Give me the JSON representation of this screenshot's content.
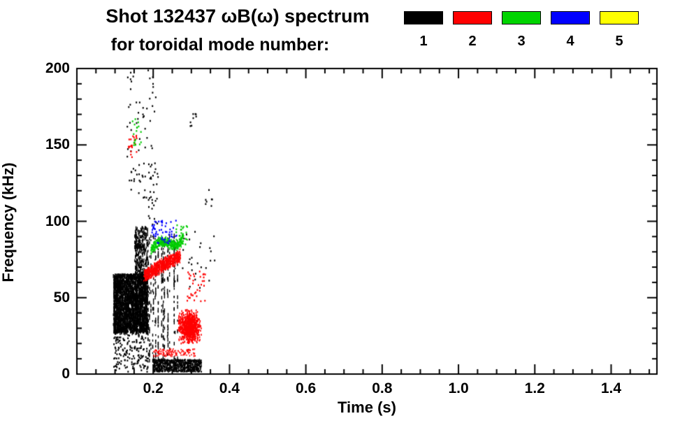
{
  "header": {
    "title": "Shot 132437 ωB(ω) spectrum",
    "subtitle": "for toroidal mode number:"
  },
  "legend": {
    "items": [
      {
        "label": "1",
        "color": "#000000"
      },
      {
        "label": "2",
        "color": "#ff0000"
      },
      {
        "label": "3",
        "color": "#00d400"
      },
      {
        "label": "4",
        "color": "#0000ff"
      },
      {
        "label": "5",
        "color": "#ffff00"
      }
    ]
  },
  "chart_data": {
    "type": "scatter",
    "title": "Shot 132437 ωB(ω) spectrum for toroidal mode number:",
    "xlabel": "Time (s)",
    "ylabel": "Frequency (kHz)",
    "xlim": [
      0.0,
      1.52
    ],
    "ylim": [
      0,
      200
    ],
    "xticks": [
      0.2,
      0.4,
      0.6,
      0.8,
      1.0,
      1.2,
      1.4
    ],
    "xtick_labels": [
      "0.2",
      "0.4",
      "0.6",
      "0.8",
      "1.0",
      "1.2",
      "1.4"
    ],
    "yticks": [
      0,
      50,
      100,
      150,
      200
    ],
    "ytick_labels": [
      "0",
      "50",
      "100",
      "150",
      "200"
    ],
    "x_minor_step": 0.05,
    "y_minor_step": 10,
    "grid": false,
    "legend_position": "top-right",
    "series": [
      {
        "name": "1",
        "color": "#000000",
        "clusters": [
          {
            "shape": "streaks",
            "t": [
              0.095,
              0.185
            ],
            "f": [
              28,
              66
            ],
            "n": 2600
          },
          {
            "shape": "specks",
            "t": [
              0.095,
              0.185
            ],
            "f": [
              2,
              28
            ],
            "n": 160
          },
          {
            "shape": "streaks",
            "t": [
              0.15,
              0.185
            ],
            "f": [
              60,
              97
            ],
            "n": 320
          },
          {
            "shape": "streaks",
            "t": [
              0.185,
              0.275
            ],
            "f": [
              8,
              92
            ],
            "n": 330,
            "sparse": true
          },
          {
            "shape": "band",
            "t": [
              0.2,
              0.325
            ],
            "f": [
              2,
              10
            ],
            "n": 950
          },
          {
            "shape": "specks",
            "t": [
              0.128,
              0.205
            ],
            "f": [
              112,
              200
            ],
            "n": 70
          },
          {
            "shape": "specks",
            "t": [
              0.185,
              0.215
            ],
            "f": [
              98,
              140
            ],
            "n": 28
          },
          {
            "shape": "specks",
            "t": [
              0.295,
              0.312
            ],
            "f": [
              162,
              172
            ],
            "n": 8
          },
          {
            "shape": "specks",
            "t": [
              0.335,
              0.365
            ],
            "f": [
              110,
              122
            ],
            "n": 7
          },
          {
            "shape": "specks",
            "t": [
              0.27,
              0.36
            ],
            "f": [
              55,
              95
            ],
            "n": 26
          }
        ]
      },
      {
        "name": "2",
        "color": "#ff0000",
        "clusters": [
          {
            "shape": "trend",
            "t": [
              0.175,
              0.27
            ],
            "f_start": 65,
            "f_end": 78,
            "thick": 5,
            "n": 750
          },
          {
            "shape": "blob",
            "t": [
              0.263,
              0.325
            ],
            "f": [
              20,
              43
            ],
            "n": 850
          },
          {
            "shape": "band",
            "t": [
              0.2,
              0.31
            ],
            "f": [
              12,
              17
            ],
            "n": 130
          },
          {
            "shape": "specks",
            "t": [
              0.133,
              0.155
            ],
            "f": [
              142,
              157
            ],
            "n": 22
          },
          {
            "shape": "specks",
            "t": [
              0.285,
              0.335
            ],
            "f": [
              48,
              68
            ],
            "n": 36
          }
        ]
      },
      {
        "name": "3",
        "color": "#00cc00",
        "clusters": [
          {
            "shape": "trend",
            "t": [
              0.193,
              0.278
            ],
            "f_start": 82,
            "f_end": 90,
            "thick": 4,
            "wave": 3,
            "n": 420
          },
          {
            "shape": "specks",
            "t": [
              0.143,
              0.168
            ],
            "f": [
              150,
              168
            ],
            "n": 18
          },
          {
            "shape": "specks",
            "t": [
              0.255,
              0.29
            ],
            "f": [
              85,
              98
            ],
            "n": 24
          }
        ]
      },
      {
        "name": "4",
        "color": "#0000ff",
        "clusters": [
          {
            "shape": "specks",
            "t": [
              0.193,
              0.262
            ],
            "f": [
              86,
              101
            ],
            "n": 55
          }
        ]
      },
      {
        "name": "5",
        "color": "#ffff00",
        "clusters": []
      }
    ]
  }
}
